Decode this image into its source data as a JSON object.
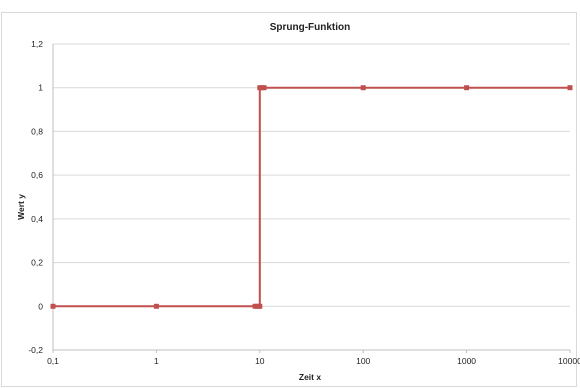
{
  "chart_data": {
    "type": "line",
    "title": "Sprung-Funktion",
    "xlabel": "Zeit x",
    "ylabel": "Wert y",
    "xscale": "log",
    "xlim": [
      0.1,
      10000
    ],
    "ylim": [
      -0.2,
      1.2
    ],
    "x_tick_labels": [
      "0,1",
      "1",
      "10",
      "100",
      "1000",
      "10000"
    ],
    "y_tick_labels": [
      "-0,2",
      "0",
      "0,2",
      "0,4",
      "0,6",
      "0,8",
      "1",
      "1,2"
    ],
    "grid": true,
    "legend": "none",
    "series": [
      {
        "color": "#c0504d",
        "x": [
          0.1,
          1,
          9,
          9.5,
          10,
          10,
          10.5,
          11,
          100,
          1000,
          10000
        ],
        "y": [
          0,
          0,
          0,
          0,
          0,
          1,
          1,
          1,
          1,
          1,
          1
        ]
      }
    ]
  }
}
